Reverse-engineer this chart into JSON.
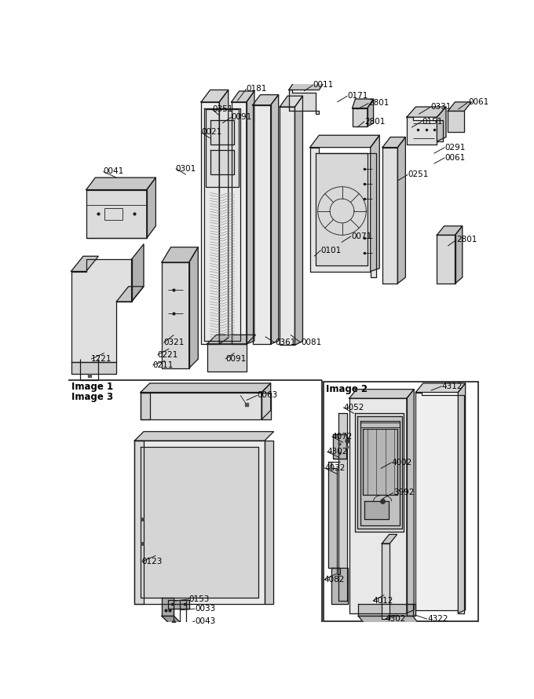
{
  "figsize": [
    6.8,
    8.9
  ],
  "dpi": 100,
  "bg": "#f5f5f0",
  "lc": "#1a1a1a",
  "tc": "#000000",
  "lw_main": 0.9,
  "lw_thin": 0.6,
  "fs_label": 7.5
}
